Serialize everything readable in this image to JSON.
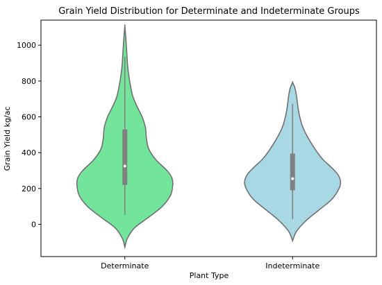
{
  "chart_data": {
    "type": "violin",
    "title": "Grain Yield Distribution for Determinate and Indeterminate Groups",
    "xlabel": "Plant Type",
    "ylabel": "Grain Yield kg/ac",
    "categories": [
      "Determinate",
      "Indeterminate"
    ],
    "ylim": [
      -180,
      1140
    ],
    "yticks": [
      0,
      200,
      400,
      600,
      800,
      1000
    ],
    "grid": false,
    "legend": false,
    "box_color": "#808080",
    "median_color": "#ffffff",
    "outline_color": "#707070",
    "violins": [
      {
        "category": "Determinate",
        "color": "#72e59a",
        "kde_min": -128,
        "kde_max": 1105,
        "whisker_low": 52,
        "whisker_high": 935,
        "q1": 220,
        "median": 325,
        "q3": 530,
        "profile": [
          [
            -128,
            0.0
          ],
          [
            -80,
            0.05
          ],
          [
            -20,
            0.2
          ],
          [
            40,
            0.5
          ],
          [
            100,
            0.78
          ],
          [
            160,
            0.95
          ],
          [
            220,
            1.0
          ],
          [
            260,
            0.98
          ],
          [
            300,
            0.88
          ],
          [
            360,
            0.65
          ],
          [
            420,
            0.5
          ],
          [
            480,
            0.45
          ],
          [
            540,
            0.43
          ],
          [
            600,
            0.36
          ],
          [
            660,
            0.25
          ],
          [
            720,
            0.16
          ],
          [
            800,
            0.1
          ],
          [
            880,
            0.06
          ],
          [
            960,
            0.04
          ],
          [
            1040,
            0.02
          ],
          [
            1105,
            0.0
          ]
        ]
      },
      {
        "category": "Indeterminate",
        "color": "#a7d8e4",
        "kde_min": -92,
        "kde_max": 792,
        "whisker_low": 30,
        "whisker_high": 672,
        "q1": 190,
        "median": 255,
        "q3": 395,
        "profile": [
          [
            -92,
            0.0
          ],
          [
            -40,
            0.08
          ],
          [
            20,
            0.28
          ],
          [
            80,
            0.55
          ],
          [
            140,
            0.82
          ],
          [
            200,
            0.97
          ],
          [
            240,
            1.0
          ],
          [
            280,
            0.94
          ],
          [
            320,
            0.8
          ],
          [
            360,
            0.64
          ],
          [
            400,
            0.52
          ],
          [
            440,
            0.42
          ],
          [
            480,
            0.33
          ],
          [
            520,
            0.25
          ],
          [
            560,
            0.19
          ],
          [
            600,
            0.15
          ],
          [
            640,
            0.12
          ],
          [
            680,
            0.1
          ],
          [
            720,
            0.08
          ],
          [
            760,
            0.05
          ],
          [
            792,
            0.0
          ]
        ]
      }
    ]
  }
}
